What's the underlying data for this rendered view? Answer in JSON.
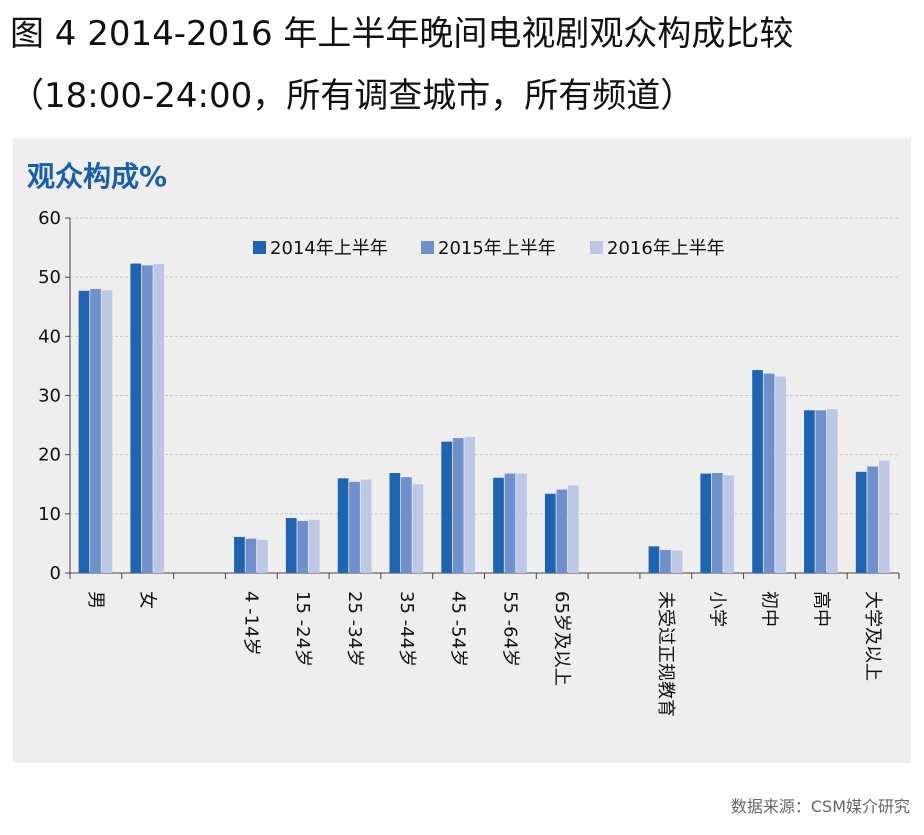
{
  "header": {
    "title_line1": "图 4  2014-2016 年上半年晚间电视剧观众构成比较",
    "title_line2": "（18:00-24:00，所有调查城市，所有频道）"
  },
  "footer": {
    "source": "数据来源：CSM媒介研究"
  },
  "colors": {
    "s2014": "#1f64b0",
    "s2015": "#6f8fcd",
    "s2016": "#bcc7e6"
  },
  "chart_data": {
    "type": "bar",
    "ylabel": "观众构成%",
    "ylim": [
      0,
      60
    ],
    "yticks": [
      0,
      10,
      20,
      30,
      40,
      50,
      60
    ],
    "grid": true,
    "legend_position": "top",
    "categories": [
      "男",
      "女",
      "",
      "4 -14岁",
      "15 -24岁",
      "25 -34岁",
      "35 -44岁",
      "45 -54岁",
      "55 -64岁",
      "65岁及以上",
      "",
      "未受过正规教育",
      "小学",
      "初中",
      "高中",
      "大学及以上"
    ],
    "series": [
      {
        "name": "2014年上半年",
        "values": [
          47.7,
          52.3,
          null,
          6.1,
          9.3,
          16.0,
          16.9,
          22.2,
          16.1,
          13.4,
          null,
          4.5,
          16.8,
          34.3,
          27.5,
          17.1
        ]
      },
      {
        "name": "2015年上半年",
        "values": [
          48.0,
          52.0,
          null,
          5.8,
          8.8,
          15.4,
          16.2,
          22.8,
          16.8,
          14.1,
          null,
          3.9,
          16.9,
          33.7,
          27.5,
          18.0
        ]
      },
      {
        "name": "2016年上半年",
        "values": [
          47.8,
          52.2,
          null,
          5.6,
          9.0,
          15.8,
          15.0,
          23.0,
          16.8,
          14.8,
          null,
          3.8,
          16.5,
          33.2,
          27.7,
          19.0
        ]
      }
    ]
  }
}
